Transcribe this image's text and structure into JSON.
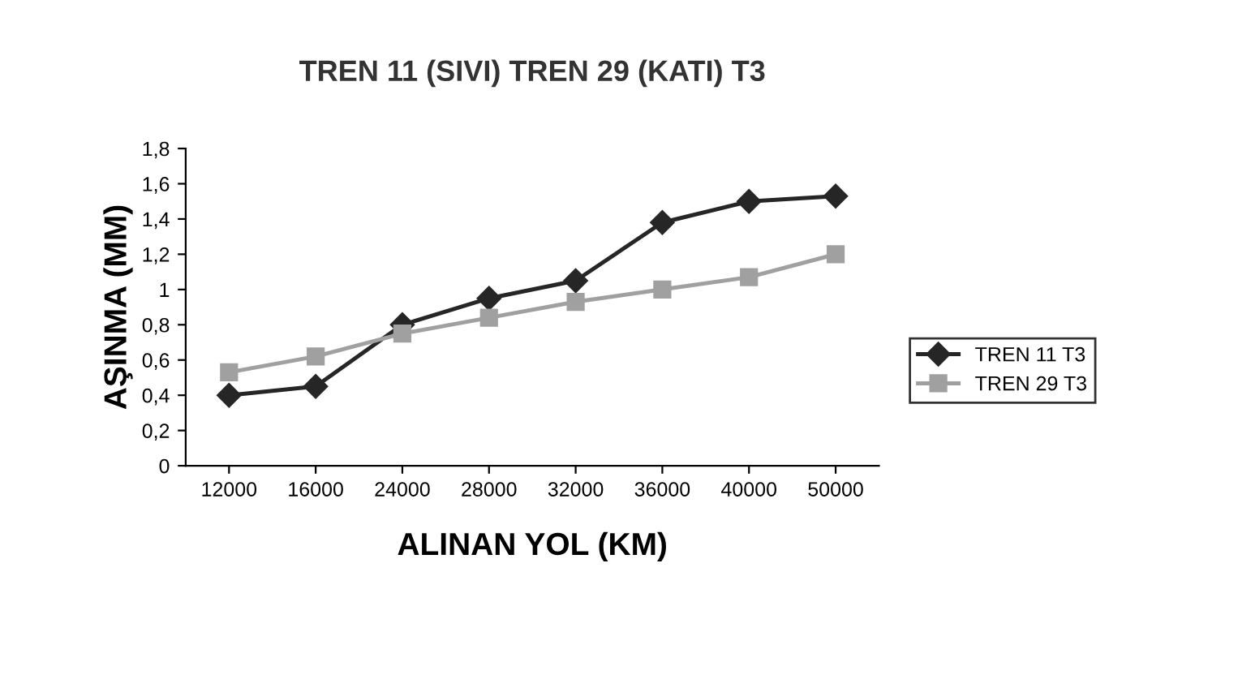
{
  "chart_data": {
    "type": "line",
    "title": "TREN 11 (SIVI) TREN 29 (KATI) T3",
    "xlabel": "ALINAN YOL (KM)",
    "ylabel": "AŞINMA (MM)",
    "categories": [
      "12000",
      "16000",
      "24000",
      "28000",
      "32000",
      "36000",
      "40000",
      "50000"
    ],
    "series": [
      {
        "name": "TREN 11 T3",
        "color": "#262626",
        "marker": "diamond",
        "values": [
          0.4,
          0.45,
          0.8,
          0.95,
          1.05,
          1.38,
          1.5,
          1.53
        ]
      },
      {
        "name": "TREN 29 T3",
        "color": "#a0a0a0",
        "marker": "square",
        "values": [
          0.53,
          0.62,
          0.75,
          0.84,
          0.93,
          1.0,
          1.07,
          1.2
        ]
      }
    ],
    "ylim": [
      0,
      1.8
    ],
    "yticks": [
      0,
      {
        "value": 0.2,
        "label": "0,2"
      },
      {
        "value": 0.4,
        "label": "0,4"
      },
      {
        "value": 0.6,
        "label": "0,6"
      },
      {
        "value": 0.8,
        "label": "0,8"
      },
      1,
      {
        "value": 1.2,
        "label": "1,2"
      },
      {
        "value": 1.4,
        "label": "1,4"
      },
      {
        "value": 1.6,
        "label": "1,6"
      },
      {
        "value": 1.8,
        "label": "1,8"
      }
    ],
    "grid": false,
    "legend": "right",
    "line_style": "solid"
  }
}
